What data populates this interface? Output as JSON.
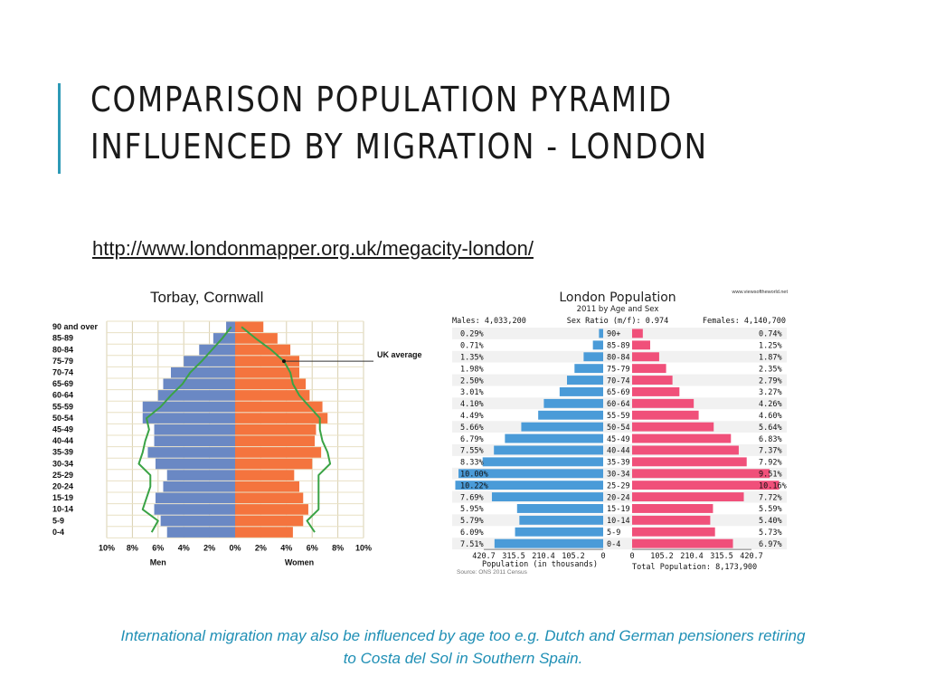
{
  "slide": {
    "title_line1": "COMPARISON POPULATION PYRAMID",
    "title_line2": "INFLUENCED BY MIGRATION - LONDON",
    "link": "http://www.londonmapper.org.uk/megacity-london/",
    "left_caption": "Torbay, Cornwall",
    "footer_line1": "International migration may also be influenced by age too e.g. Dutch and German pensioners retiring",
    "footer_line2": "to Costa del Sol in Southern Spain.",
    "accent_color": "#2e9ab6"
  },
  "chart_data": [
    {
      "type": "bar",
      "orientation": "population-pyramid",
      "title": "",
      "categories": [
        "0-4",
        "5-9",
        "10-14",
        "15-19",
        "20-24",
        "25-29",
        "30-34",
        "35-39",
        "40-44",
        "45-49",
        "50-54",
        "55-59",
        "60-64",
        "65-69",
        "70-74",
        "75-79",
        "80-84",
        "85-89",
        "90 and over"
      ],
      "series": [
        {
          "name": "Men",
          "color": "#6a88c4",
          "values": [
            5.3,
            5.8,
            6.3,
            6.2,
            5.6,
            5.3,
            6.2,
            6.8,
            6.3,
            6.3,
            7.2,
            7.2,
            6.0,
            5.6,
            5.0,
            4.0,
            2.8,
            1.7,
            0.7
          ]
        },
        {
          "name": "Women",
          "color": "#f4743e",
          "values": [
            4.5,
            5.3,
            5.7,
            5.3,
            5.0,
            4.6,
            6.0,
            6.7,
            6.2,
            6.3,
            7.2,
            6.8,
            5.8,
            5.5,
            5.0,
            5.0,
            4.3,
            3.3,
            2.2
          ]
        },
        {
          "name": "UK average",
          "color": "#3aa345",
          "style": "line",
          "men": [
            6.5,
            6.0,
            7.2,
            6.9,
            6.6,
            6.6,
            7.5,
            7.2,
            7.0,
            6.7,
            6.9,
            5.8,
            5.0,
            4.1,
            3.5,
            2.6,
            1.8,
            1.0,
            0.3
          ],
          "women": [
            6.2,
            5.6,
            6.5,
            6.5,
            6.5,
            6.5,
            7.4,
            7.2,
            6.8,
            6.6,
            6.6,
            5.8,
            5.0,
            4.5,
            4.3,
            3.8,
            2.8,
            1.6,
            0.5
          ]
        }
      ],
      "x_tick_labels": [
        "10%",
        "8%",
        "6%",
        "4%",
        "2%",
        "0%",
        "2%",
        "4%",
        "6%",
        "8%",
        "10%"
      ],
      "xlabel_left": "Men",
      "xlabel_right": "Women",
      "annotation": "UK average",
      "xlim": [
        -10,
        10
      ],
      "grid": true
    },
    {
      "type": "bar",
      "orientation": "population-pyramid",
      "title": "London Population",
      "subtitle": "2011 by Age and Sex",
      "source_badge": "www.viewsoftheworld.net",
      "males_label": "Males: 4,033,200",
      "ratio_label": "Sex Ratio (m/f): 0.974",
      "females_label": "Females: 4,140,700",
      "categories": [
        "90+",
        "85-89",
        "80-84",
        "75-79",
        "70-74",
        "65-69",
        "60-64",
        "55-59",
        "50-54",
        "45-49",
        "40-44",
        "35-39",
        "30-34",
        "25-29",
        "20-24",
        "15-19",
        "10-14",
        "5-9",
        "0-4"
      ],
      "series": [
        {
          "name": "Males",
          "color": "#4a9bd8",
          "values": [
            0.29,
            0.71,
            1.35,
            1.98,
            2.5,
            3.01,
            4.1,
            4.49,
            5.66,
            6.79,
            7.55,
            8.33,
            10.0,
            10.22,
            7.69,
            5.95,
            5.79,
            6.09,
            7.51
          ],
          "value_labels": [
            "0.29%",
            "0.71%",
            "1.35%",
            "1.98%",
            "2.50%",
            "3.01%",
            "4.10%",
            "4.49%",
            "5.66%",
            "6.79%",
            "7.55%",
            "8.33%",
            "10.00%",
            "10.22%",
            "7.69%",
            "5.95%",
            "5.79%",
            "6.09%",
            "7.51%"
          ]
        },
        {
          "name": "Females",
          "color": "#f0507a",
          "values": [
            0.74,
            1.25,
            1.87,
            2.35,
            2.79,
            3.27,
            4.26,
            4.6,
            5.64,
            6.83,
            7.37,
            7.92,
            9.51,
            10.16,
            7.72,
            5.59,
            5.4,
            5.73,
            6.97
          ],
          "value_labels": [
            "0.74%",
            "1.25%",
            "1.87%",
            "2.35%",
            "2.79%",
            "3.27%",
            "4.26%",
            "4.60%",
            "5.64%",
            "6.83%",
            "7.37%",
            "7.92%",
            "9.51%",
            "10.16%",
            "7.72%",
            "5.59%",
            "5.40%",
            "5.73%",
            "6.97%"
          ]
        }
      ],
      "x_tick_labels_left": [
        "420.7",
        "315.5",
        "210.4",
        "105.2",
        "0"
      ],
      "x_tick_labels_right": [
        "0",
        "105.2",
        "210.4",
        "315.5",
        "420.7"
      ],
      "xlabel": "Population (in thousands)",
      "total_label": "Total Population: 8,173,900",
      "source": "Source: ONS 2011 Census"
    }
  ]
}
